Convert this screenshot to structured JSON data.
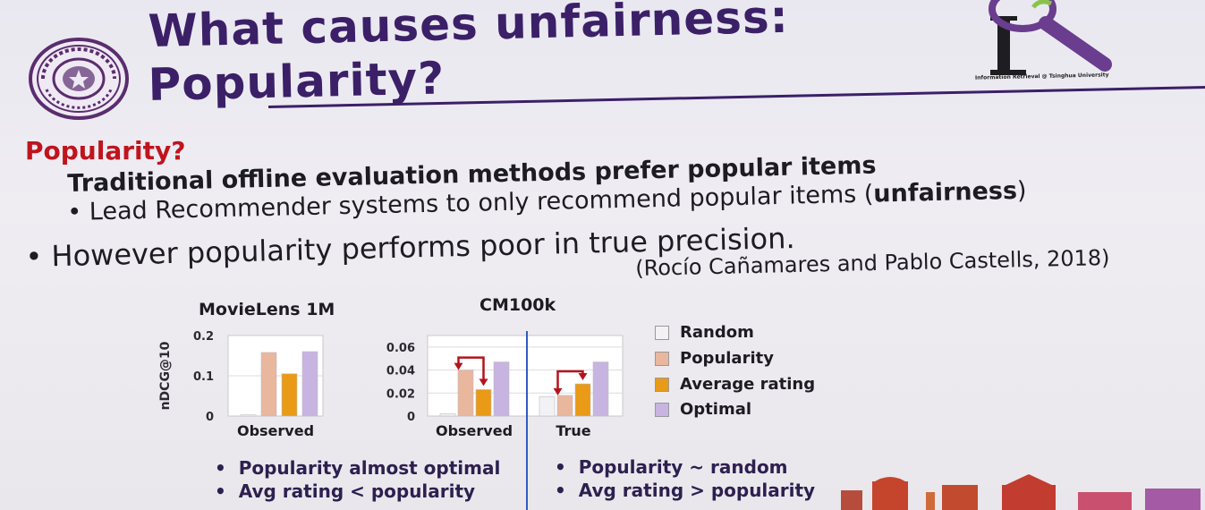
{
  "header": {
    "title_line1": "What causes unfairness:",
    "title_line2": "Popularity?",
    "ir_tagline": "Information Retrieval @ Tsinghua University"
  },
  "body": {
    "section_heading": "Popularity?",
    "line1": "Traditional offline evaluation methods prefer popular items",
    "line2_prefix": "• Lead Recommender systems to only recommend popular items (",
    "line2_bold": "unfairness",
    "line2_suffix": ")",
    "line3": "• However popularity performs poor in true precision.",
    "citation": "(Rocío Cañamares and Pablo Castells, 2018)"
  },
  "chart_data": [
    {
      "type": "bar",
      "title": "MovieLens 1M",
      "ylabel": "nDCG@10",
      "categories": [
        "Observed"
      ],
      "ylim": [
        0,
        0.2
      ],
      "yticks": [
        "0.2",
        "0.1",
        "0"
      ],
      "series": [
        {
          "name": "Random",
          "values": [
            0.003
          ]
        },
        {
          "name": "Popularity",
          "values": [
            0.158
          ]
        },
        {
          "name": "Average rating",
          "values": [
            0.105
          ]
        },
        {
          "name": "Optimal",
          "values": [
            0.16
          ]
        }
      ]
    },
    {
      "type": "bar",
      "title": "CM100k",
      "categories": [
        "Observed",
        "True"
      ],
      "ylim": [
        0,
        0.07
      ],
      "yticks": [
        "0.06",
        "0.04",
        "0.02",
        "0"
      ],
      "series": [
        {
          "name": "Random",
          "values": [
            0.002,
            0.017
          ]
        },
        {
          "name": "Popularity",
          "values": [
            0.04,
            0.018
          ]
        },
        {
          "name": "Average rating",
          "values": [
            0.023,
            0.028
          ]
        },
        {
          "name": "Optimal",
          "values": [
            0.047,
            0.047
          ]
        }
      ]
    }
  ],
  "legend": [
    {
      "label": "Random",
      "color": "#f2f2f4"
    },
    {
      "label": "Popularity",
      "color": "#e9b79d"
    },
    {
      "label": "Average rating",
      "color": "#e99a16"
    },
    {
      "label": "Optimal",
      "color": "#c7b4e0"
    }
  ],
  "notes_left": [
    "Popularity almost optimal",
    "Avg rating < popularity"
  ],
  "notes_right": [
    "Popularity ~ random",
    "Avg rating > popularity"
  ],
  "colors": {
    "title": "#3b2068",
    "heading": "#c0141d",
    "arrow": "#b3141b",
    "divider": "#2f5cc2"
  }
}
